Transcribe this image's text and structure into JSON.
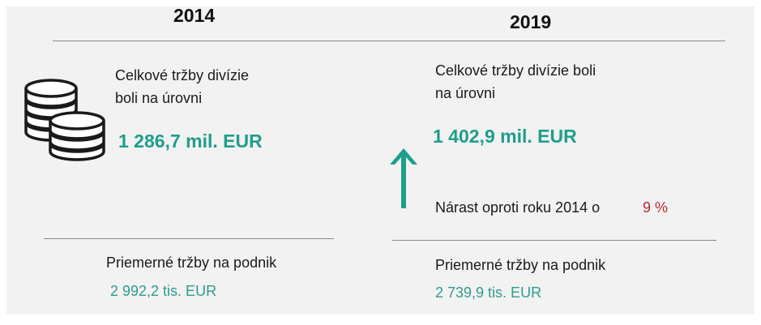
{
  "left": {
    "year": "2014",
    "total_label_line1": "Celkové tržby divízie",
    "total_label_line2": "boli na úrovni",
    "total_value": "1 286,7 mil. EUR",
    "avg_label": "Priemerné tržby na podnik",
    "avg_value": "2 992,2 tis. EUR"
  },
  "right": {
    "year": "2019",
    "total_label_line1": "Celkové tržby divízie boli",
    "total_label_line2": "na úrovni",
    "total_value": "1 402,9 mil. EUR",
    "growth_label": "Nárast oproti roku 2014  o",
    "growth_value": "9 %",
    "avg_label": "Priemerné tržby na podnik",
    "avg_value": "2 739,9 tis. EUR"
  },
  "icons": {
    "coins": "coins-stack-icon",
    "arrow": "arrow-up-icon"
  },
  "colors": {
    "accent_teal": "#1f9e8c",
    "growth_red": "#c0282d",
    "background": "#f2f2f2"
  }
}
